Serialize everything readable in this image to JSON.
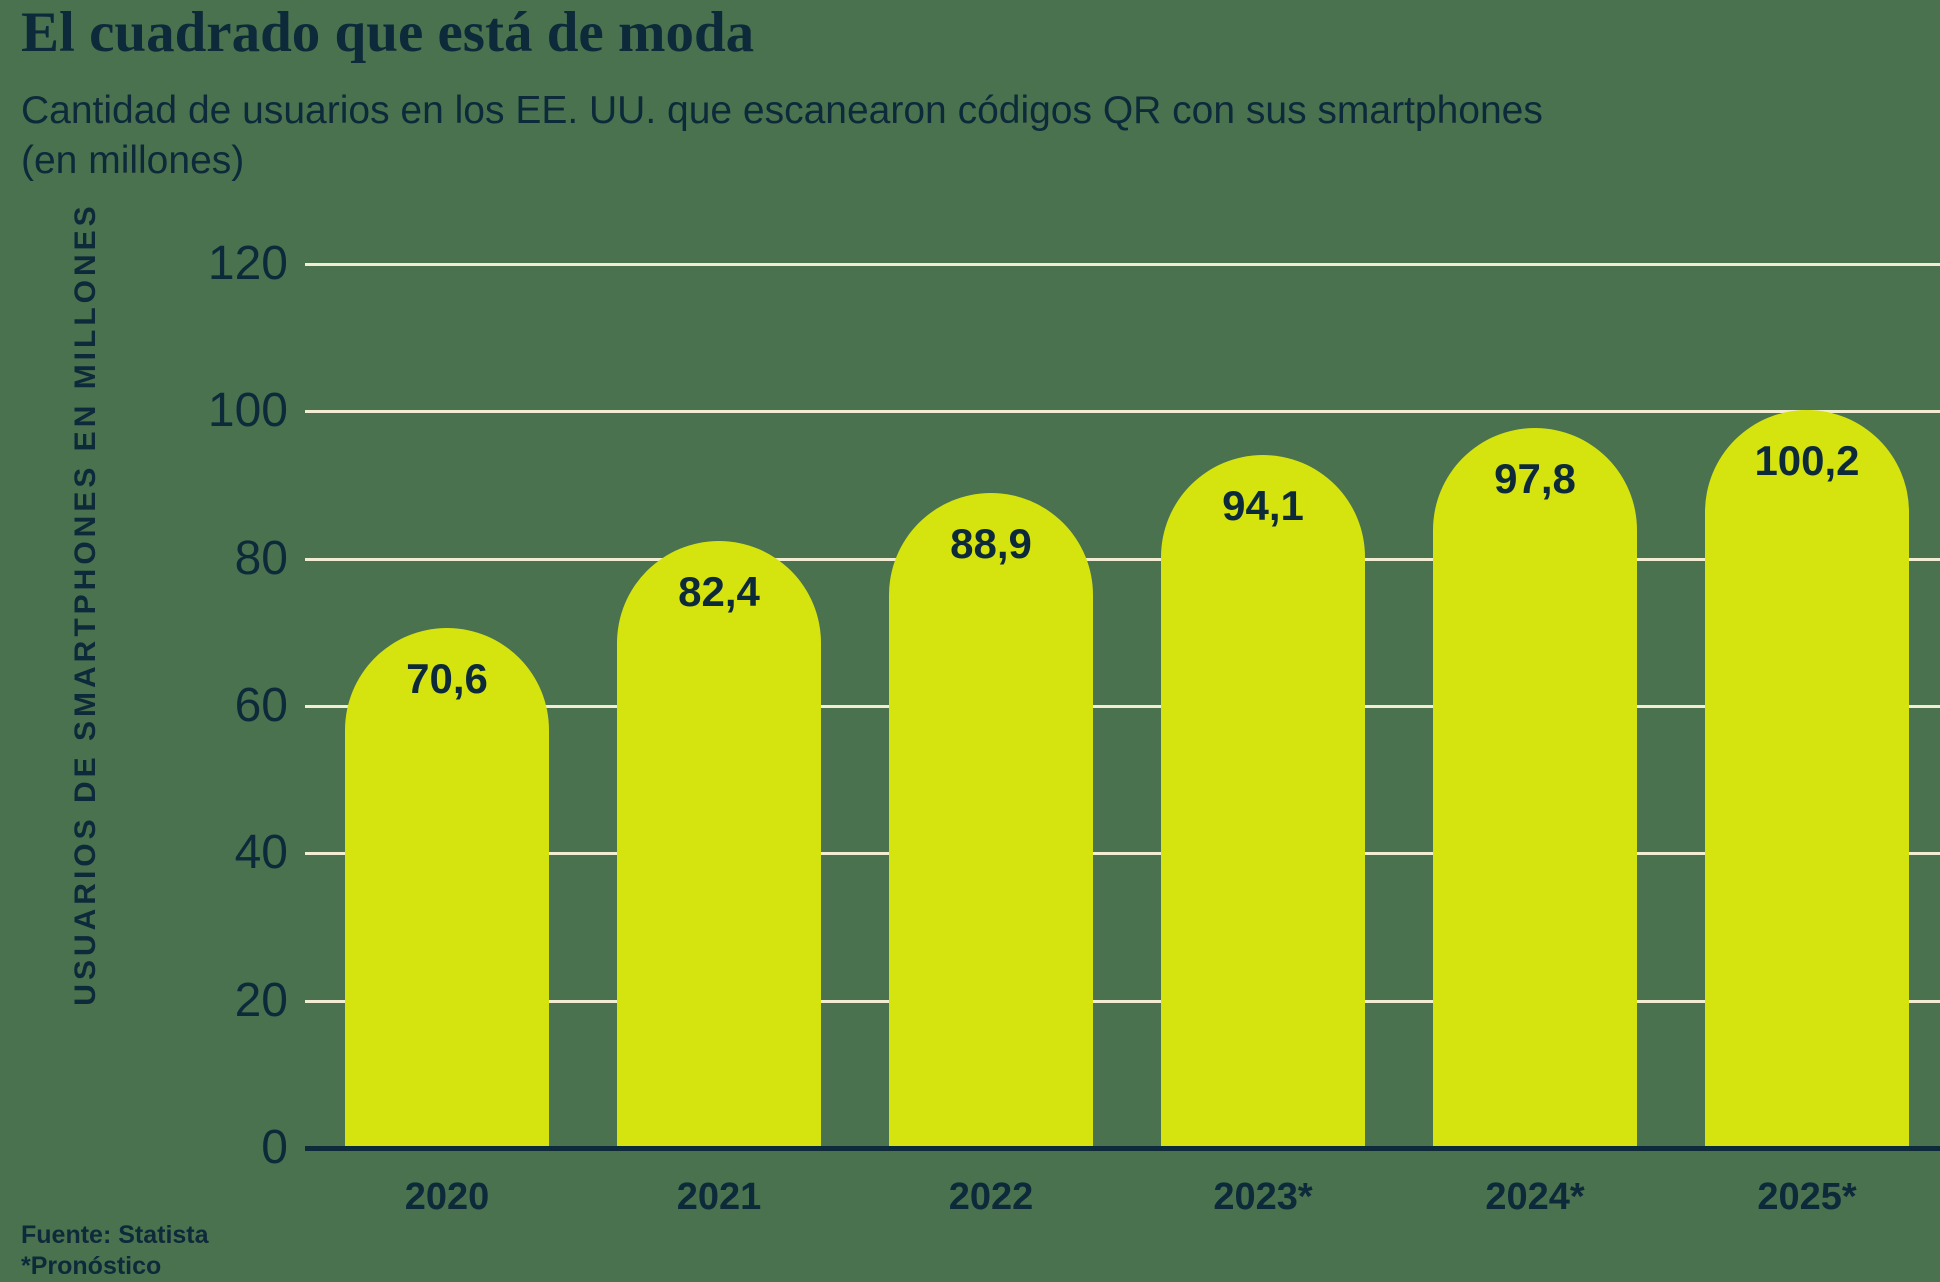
{
  "title": "El cuadrado que está de moda",
  "subtitle": "Cantidad de usuarios en los EE. UU. que escanearon códigos QR con sus smartphones (en millones)",
  "source": "Fuente: Statista",
  "footnote": "*Pronóstico",
  "colors": {
    "background": "#4A724E",
    "bar": "#D5E30E",
    "text": "#0D2A3B",
    "gridline": "#F2ECD2"
  },
  "chart_data": {
    "type": "bar",
    "categories": [
      "2020",
      "2021",
      "2022",
      "2023*",
      "2024*",
      "2025*"
    ],
    "values": [
      70.6,
      82.4,
      88.9,
      94.1,
      97.8,
      100.2
    ],
    "value_labels": [
      "70,6",
      "82,4",
      "88,9",
      "94,1",
      "97,8",
      "100,2"
    ],
    "title": "El cuadrado que está de moda",
    "xlabel": "",
    "ylabel": "USUARIOS DE SMARTPHONES EN MILLONES",
    "yticks": [
      0,
      20,
      40,
      60,
      80,
      100,
      120
    ],
    "ylim": [
      0,
      120
    ],
    "grid": true,
    "legend_position": "none",
    "bar_style": "rounded-top"
  }
}
